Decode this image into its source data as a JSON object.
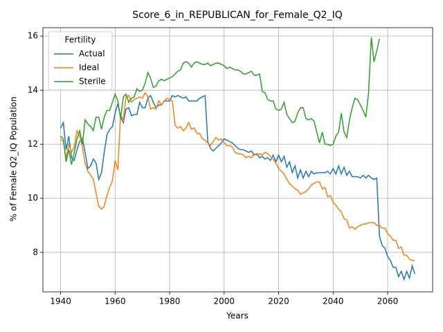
{
  "chart_data": {
    "type": "line",
    "title": "Score_6_in_REPUBLICAN_for_Female_Q2_IQ",
    "x_label": "Years",
    "y_label": "% of Female Q2_IQ Population",
    "legend_title": "Fertility",
    "legend_position": "upper left",
    "grid": true,
    "xlim": [
      1933.5,
      2076.5
    ],
    "ylim": [
      6.54,
      16.31
    ],
    "xticks": [
      1940,
      1960,
      1980,
      2000,
      2020,
      2040,
      2060
    ],
    "yticks": [
      8,
      10,
      12,
      14,
      16
    ],
    "x": [
      1940,
      1941,
      1942,
      1943,
      1944,
      1945,
      1946,
      1947,
      1948,
      1949,
      1950,
      1951,
      1952,
      1953,
      1954,
      1955,
      1956,
      1957,
      1958,
      1959,
      1960,
      1961,
      1962,
      1963,
      1964,
      1965,
      1966,
      1967,
      1968,
      1969,
      1970,
      1971,
      1972,
      1973,
      1974,
      1975,
      1976,
      1977,
      1978,
      1979,
      1980,
      1981,
      1982,
      1983,
      1984,
      1985,
      1986,
      1987,
      1988,
      1989,
      1990,
      1991,
      1992,
      1993,
      1994,
      1995,
      1996,
      1997,
      1998,
      1999,
      2000,
      2001,
      2002,
      2003,
      2004,
      2005,
      2006,
      2007,
      2008,
      2009,
      2010,
      2011,
      2012,
      2013,
      2014,
      2015,
      2016,
      2017,
      2018,
      2019,
      2020,
      2021,
      2022,
      2023,
      2024,
      2025,
      2026,
      2027,
      2028,
      2029,
      2030,
      2031,
      2032,
      2033,
      2034,
      2035,
      2036,
      2037,
      2038,
      2039,
      2040,
      2041,
      2042,
      2043,
      2044,
      2045,
      2046,
      2047,
      2048,
      2049,
      2050,
      2051,
      2052,
      2053,
      2054,
      2055,
      2056,
      2057,
      2058,
      2059,
      2060,
      2061,
      2062,
      2063,
      2064,
      2065,
      2066,
      2067,
      2068,
      2069,
      2070
    ],
    "series": [
      {
        "name": "Actual",
        "color": "#1f77b4",
        "values": [
          12.6,
          12.8,
          11.8,
          12.3,
          11.5,
          11.4,
          11.8,
          12.1,
          12.2,
          11.7,
          11.1,
          11.2,
          11.45,
          11.3,
          10.7,
          10.95,
          11.7,
          12.35,
          12.55,
          12.65,
          13.15,
          13.5,
          13.0,
          12.8,
          13.3,
          13.35,
          13.05,
          13.1,
          13.1,
          13.55,
          13.35,
          13.35,
          13.7,
          13.8,
          13.55,
          13.35,
          13.45,
          13.45,
          13.6,
          13.6,
          13.6,
          13.8,
          13.75,
          13.8,
          13.75,
          13.7,
          13.75,
          13.6,
          13.6,
          13.6,
          13.6,
          13.7,
          13.75,
          13.8,
          12.1,
          11.85,
          11.75,
          11.85,
          11.95,
          12.05,
          12.2,
          12.15,
          12.1,
          12.05,
          11.95,
          11.85,
          11.8,
          11.8,
          11.75,
          11.7,
          11.75,
          11.6,
          11.65,
          11.5,
          11.55,
          11.45,
          11.5,
          11.4,
          11.6,
          11.35,
          11.6,
          11.35,
          11.55,
          11.15,
          11.35,
          10.95,
          11.2,
          10.75,
          11.05,
          10.75,
          11.0,
          10.8,
          11.0,
          10.9,
          10.95,
          10.95,
          10.95,
          10.95,
          11.0,
          10.9,
          11.1,
          10.9,
          11.2,
          10.9,
          11.15,
          10.85,
          11.0,
          10.8,
          10.8,
          10.8,
          10.75,
          10.85,
          10.75,
          10.85,
          10.75,
          10.7,
          10.75,
          8.6,
          8.25,
          8.15,
          7.85,
          7.7,
          7.45,
          7.45,
          7.1,
          7.3,
          7.0,
          7.3,
          7.05,
          7.5,
          7.2
        ]
      },
      {
        "name": "Ideal",
        "color": "#ff7f0e",
        "values": [
          12.2,
          12.1,
          11.5,
          12.0,
          11.7,
          11.9,
          12.5,
          12.3,
          11.9,
          11.3,
          11.0,
          10.85,
          10.7,
          10.2,
          9.7,
          9.6,
          9.7,
          10.1,
          10.4,
          10.65,
          11.4,
          11.05,
          13.1,
          12.9,
          13.75,
          13.8,
          13.55,
          13.65,
          13.7,
          13.75,
          13.7,
          13.9,
          13.75,
          13.3,
          13.35,
          13.3,
          13.6,
          13.45,
          13.6,
          13.7,
          13.65,
          13.6,
          12.7,
          12.6,
          12.65,
          12.5,
          12.6,
          12.8,
          12.55,
          12.6,
          12.4,
          12.4,
          12.2,
          12.15,
          12.05,
          11.95,
          12.1,
          12.25,
          12.15,
          12.2,
          12.05,
          11.95,
          11.95,
          11.9,
          11.7,
          11.65,
          11.65,
          11.6,
          11.5,
          11.55,
          11.5,
          11.65,
          11.6,
          11.65,
          11.6,
          11.7,
          11.65,
          11.55,
          11.45,
          11.3,
          11.1,
          11.0,
          10.9,
          10.7,
          10.55,
          10.45,
          10.35,
          10.3,
          10.15,
          10.2,
          10.25,
          10.35,
          10.5,
          10.55,
          10.6,
          10.6,
          10.35,
          10.4,
          10.05,
          10.1,
          9.85,
          9.75,
          9.6,
          9.5,
          9.25,
          9.2,
          8.9,
          8.95,
          8.85,
          8.95,
          9.0,
          9.05,
          9.05,
          9.1,
          9.1,
          9.1,
          9.0,
          9.0,
          8.9,
          8.9,
          8.7,
          8.6,
          8.45,
          8.45,
          8.15,
          8.2,
          7.9,
          7.9,
          7.75,
          7.7,
          7.7
        ]
      },
      {
        "name": "Sterile",
        "color": "#2ca02c",
        "values": [
          12.3,
          12.2,
          11.35,
          11.8,
          11.25,
          11.7,
          12.2,
          12.5,
          12.0,
          12.9,
          12.75,
          12.65,
          12.5,
          13.0,
          13.0,
          12.55,
          13.0,
          13.25,
          13.25,
          13.55,
          13.85,
          13.6,
          12.95,
          13.75,
          13.85,
          13.55,
          13.7,
          13.75,
          14.05,
          13.95,
          14.0,
          14.25,
          14.65,
          14.45,
          14.1,
          14.15,
          14.35,
          14.4,
          14.35,
          14.4,
          14.45,
          14.5,
          14.6,
          14.7,
          14.75,
          15.0,
          15.05,
          15.0,
          14.85,
          15.0,
          15.05,
          15.0,
          14.95,
          14.95,
          15.0,
          14.9,
          14.95,
          15.0,
          15.0,
          14.95,
          14.9,
          14.8,
          14.85,
          14.8,
          14.75,
          14.75,
          14.7,
          14.6,
          14.6,
          14.65,
          14.7,
          14.55,
          14.55,
          14.6,
          13.95,
          13.9,
          13.65,
          13.6,
          13.6,
          13.3,
          13.25,
          13.3,
          13.55,
          13.1,
          12.95,
          12.8,
          12.85,
          13.15,
          13.35,
          13.35,
          12.95,
          12.9,
          12.95,
          12.85,
          12.45,
          12.05,
          12.45,
          12.0,
          12.0,
          11.95,
          12.0,
          12.3,
          12.45,
          13.15,
          12.45,
          12.25,
          12.9,
          13.35,
          13.7,
          13.65,
          13.45,
          13.25,
          13.0,
          13.9,
          15.95,
          15.05,
          15.45,
          15.9,
          null,
          null,
          null,
          null,
          null,
          null,
          null,
          null,
          null,
          null,
          null,
          null,
          null
        ]
      }
    ]
  }
}
